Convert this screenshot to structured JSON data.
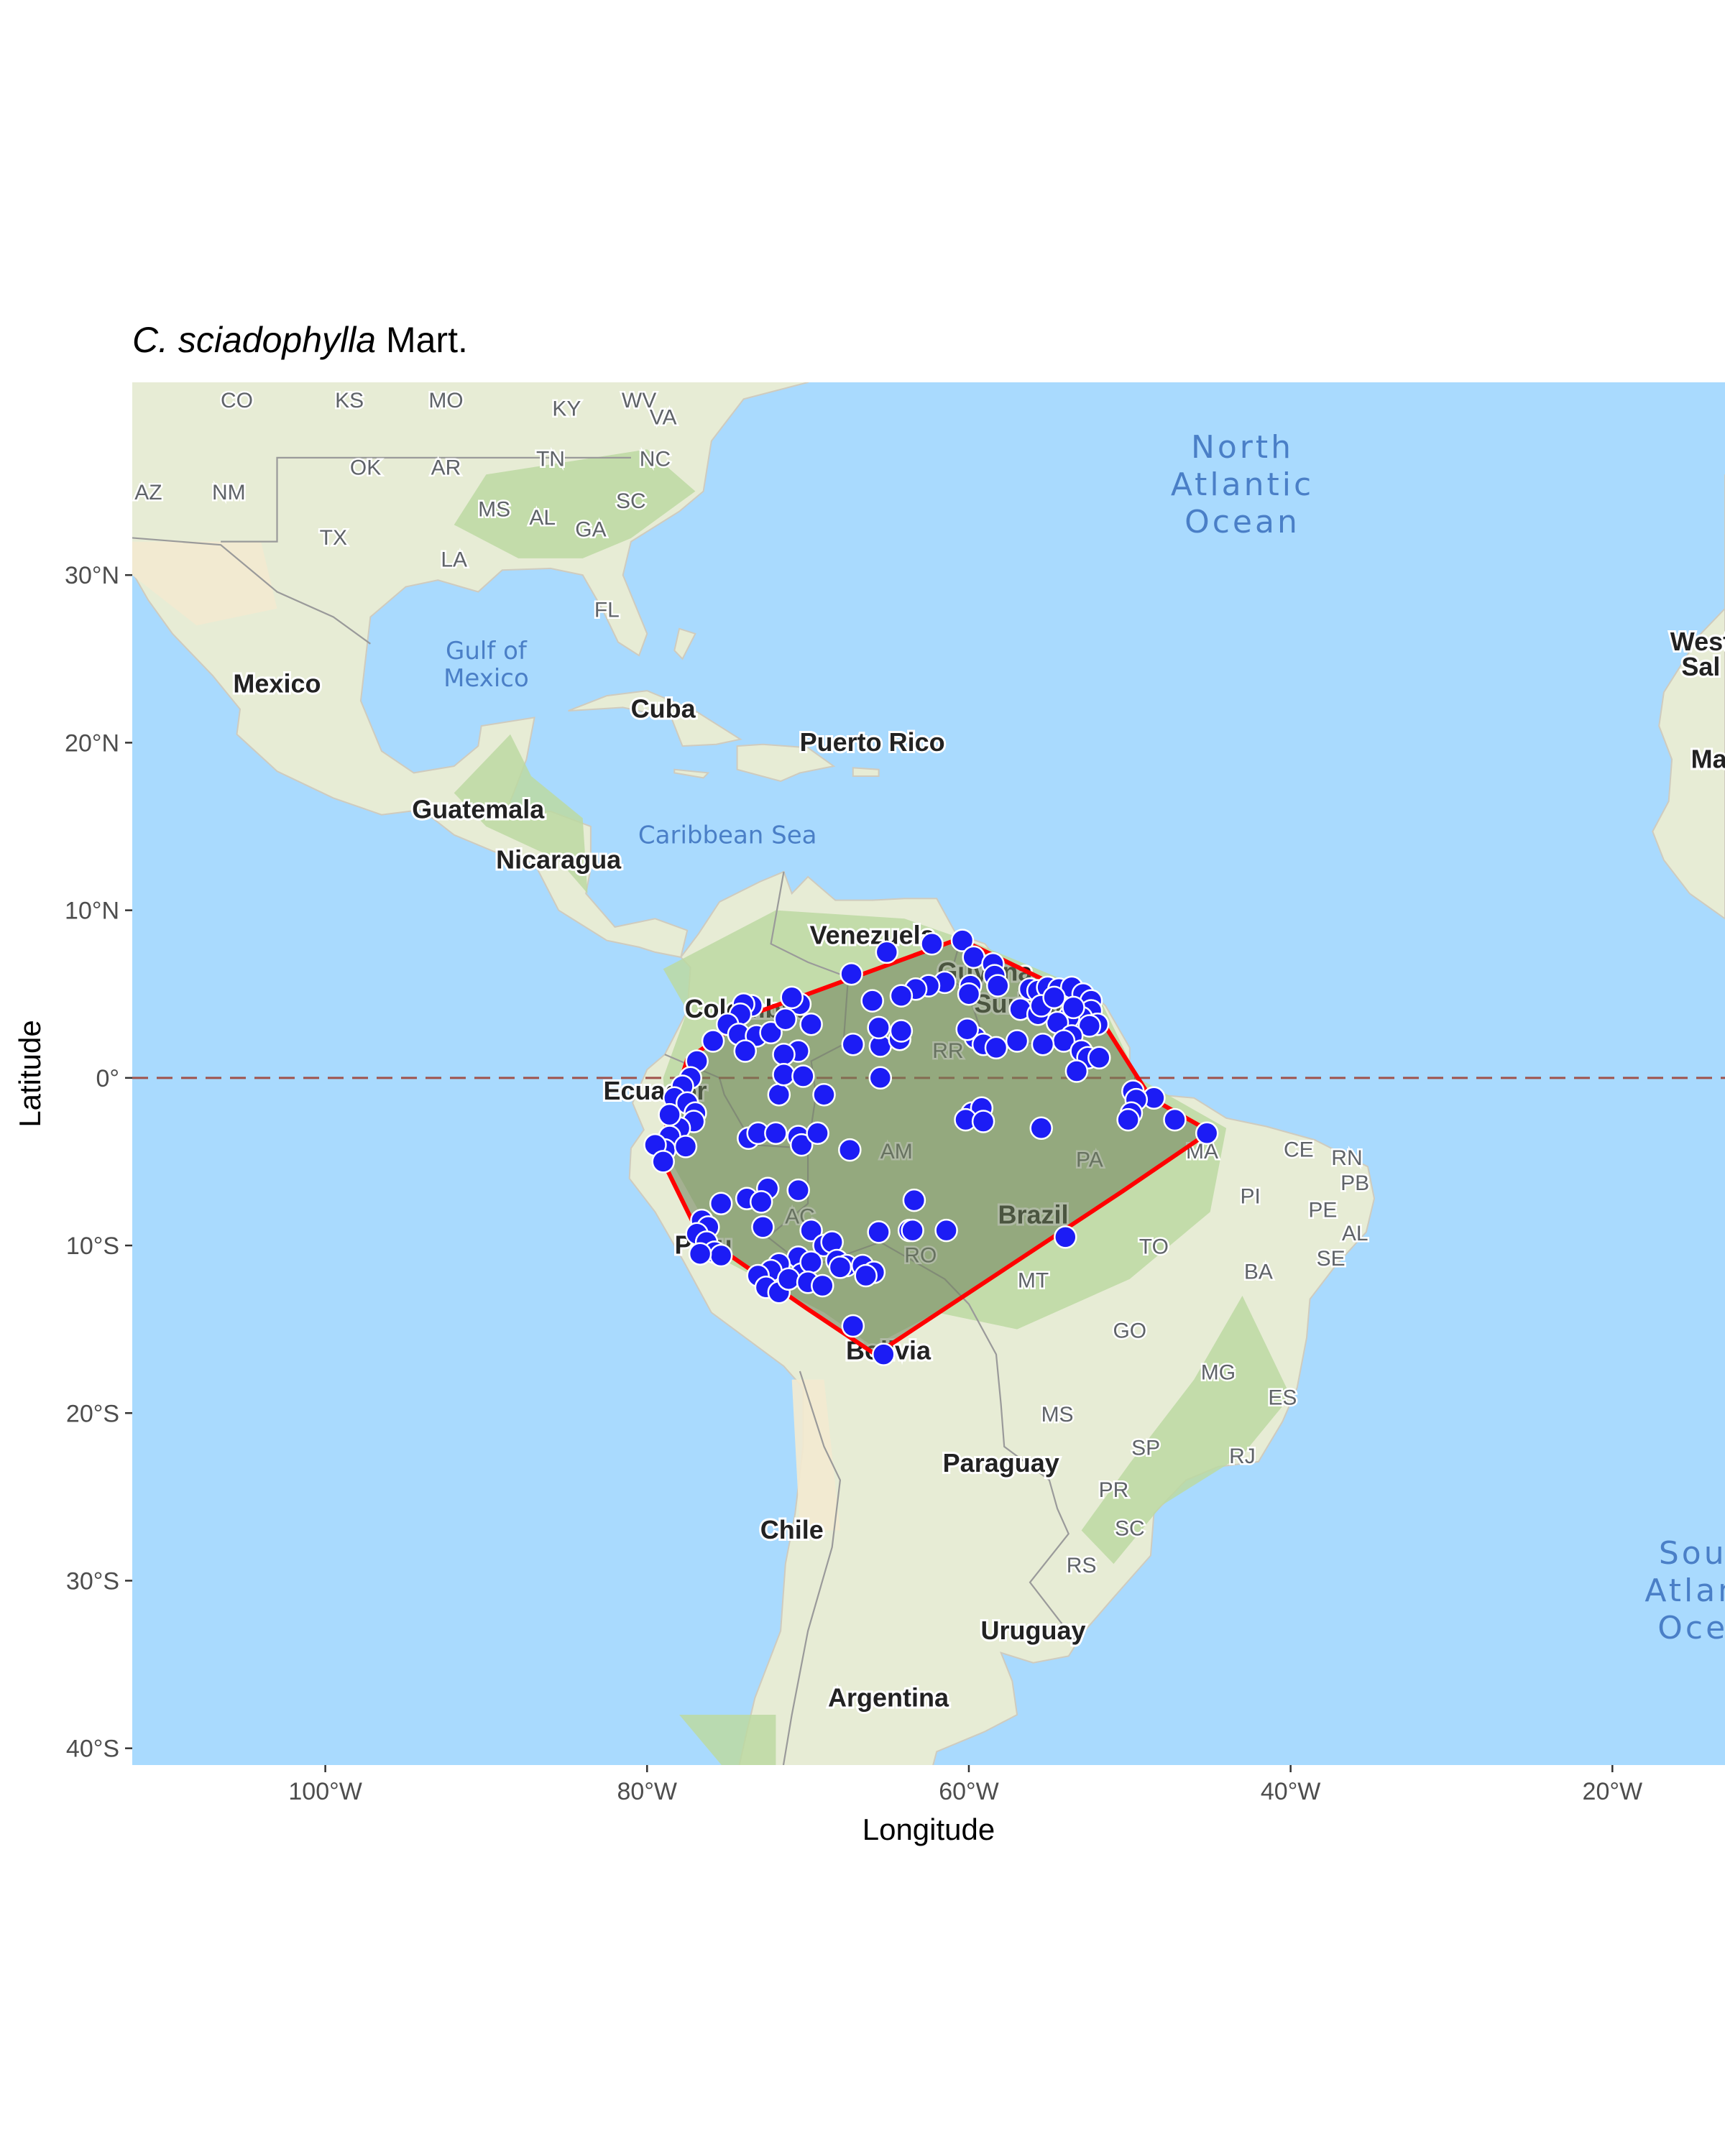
{
  "title": {
    "species": "C. sciadophylla",
    "author": "Mart."
  },
  "axes": {
    "xlabel": "Longitude",
    "ylabel": "Latitude",
    "xlim": [
      -112,
      -13
    ],
    "ylim": [
      -41,
      41.5
    ],
    "x_ticks": [
      {
        "value": -100,
        "label": "100°W"
      },
      {
        "value": -80,
        "label": "80°W"
      },
      {
        "value": -60,
        "label": "60°W"
      },
      {
        "value": -40,
        "label": "40°W"
      },
      {
        "value": -20,
        "label": "20°W"
      }
    ],
    "y_ticks": [
      {
        "value": 30,
        "label": "30°N"
      },
      {
        "value": 20,
        "label": "20°N"
      },
      {
        "value": 10,
        "label": "10°N"
      },
      {
        "value": 0,
        "label": "0°"
      },
      {
        "value": -10,
        "label": "10°S"
      },
      {
        "value": -20,
        "label": "20°S"
      },
      {
        "value": -30,
        "label": "30°S"
      },
      {
        "value": -40,
        "label": "40°S"
      }
    ]
  },
  "map_labels": {
    "oceans": [
      {
        "lines": [
          "North",
          "Atlantic",
          "Ocean"
        ],
        "lon": -43,
        "lat": 37
      },
      {
        "lines": [
          "Sou",
          "Atlan",
          "Oce"
        ],
        "lon": -15,
        "lat": -29
      }
    ],
    "seas": [
      {
        "lines": [
          "Gulf of",
          "Mexico"
        ],
        "lon": -90,
        "lat": 25
      },
      {
        "lines": [
          "Caribbean Sea"
        ],
        "lon": -75,
        "lat": 14
      }
    ],
    "countries": [
      {
        "text": "Mexico",
        "lon": -103,
        "lat": 23
      },
      {
        "text": "Cuba",
        "lon": -79,
        "lat": 21.5
      },
      {
        "text": "Puerto Rico",
        "lon": -66,
        "lat": 19.5
      },
      {
        "text": "Guatemala",
        "lon": -90.5,
        "lat": 15.5
      },
      {
        "text": "Nicaragua",
        "lon": -85.5,
        "lat": 12.5
      },
      {
        "text": "Venezuela",
        "lon": -66,
        "lat": 8
      },
      {
        "text": "Guyana",
        "lon": -59,
        "lat": 5.8
      },
      {
        "text": "Suriname",
        "lon": -56,
        "lat": 3.9
      },
      {
        "text": "Colombia",
        "lon": -74,
        "lat": 3.6
      },
      {
        "text": "Ecuador",
        "lon": -79.5,
        "lat": -1.3
      },
      {
        "text": "Brazil",
        "lon": -56,
        "lat": -8.7
      },
      {
        "text": "Peru",
        "lon": -76.5,
        "lat": -10.5
      },
      {
        "text": "Bolivia",
        "lon": -65,
        "lat": -16.8
      },
      {
        "text": "Paraguay",
        "lon": -58,
        "lat": -23.5
      },
      {
        "text": "Chile",
        "lon": -71,
        "lat": -27.5
      },
      {
        "text": "Uruguay",
        "lon": -56,
        "lat": -33.5
      },
      {
        "text": "Argentina",
        "lon": -65,
        "lat": -37.5
      },
      {
        "text": "West",
        "lon": -14.5,
        "lat": 25.5
      },
      {
        "text": "Sal",
        "lon": -14.5,
        "lat": 24
      },
      {
        "text": "Ma",
        "lon": -14,
        "lat": 18.5
      }
    ],
    "states": [
      {
        "text": "CO",
        "lon": -105.5,
        "lat": 40
      },
      {
        "text": "KS",
        "lon": -98.5,
        "lat": 40
      },
      {
        "text": "MO",
        "lon": -92.5,
        "lat": 40
      },
      {
        "text": "WV",
        "lon": -80.5,
        "lat": 40
      },
      {
        "text": "KY",
        "lon": -85,
        "lat": 39.5
      },
      {
        "text": "VA",
        "lon": -79,
        "lat": 39
      },
      {
        "text": "OK",
        "lon": -97.5,
        "lat": 36
      },
      {
        "text": "AR",
        "lon": -92.5,
        "lat": 36
      },
      {
        "text": "TN",
        "lon": -86,
        "lat": 36.5
      },
      {
        "text": "NC",
        "lon": -79.5,
        "lat": 36.5
      },
      {
        "text": "AZ",
        "lon": -111,
        "lat": 34.5
      },
      {
        "text": "NM",
        "lon": -106,
        "lat": 34.5
      },
      {
        "text": "MS",
        "lon": -89.5,
        "lat": 33.5
      },
      {
        "text": "AL",
        "lon": -86.5,
        "lat": 33
      },
      {
        "text": "SC",
        "lon": -81,
        "lat": 34
      },
      {
        "text": "GA",
        "lon": -83.5,
        "lat": 32.3
      },
      {
        "text": "TX",
        "lon": -99.5,
        "lat": 31.8
      },
      {
        "text": "LA",
        "lon": -92,
        "lat": 30.5
      },
      {
        "text": "FL",
        "lon": -82.5,
        "lat": 27.5
      },
      {
        "text": "RR",
        "lon": -61.3,
        "lat": 1.2
      },
      {
        "text": "AM",
        "lon": -64.5,
        "lat": -4.8
      },
      {
        "text": "PA",
        "lon": -52.5,
        "lat": -5.3
      },
      {
        "text": "AC",
        "lon": -70.5,
        "lat": -8.7
      },
      {
        "text": "RO",
        "lon": -63,
        "lat": -11
      },
      {
        "text": "MA",
        "lon": -45.5,
        "lat": -4.8
      },
      {
        "text": "CE",
        "lon": -39.5,
        "lat": -4.7
      },
      {
        "text": "RN",
        "lon": -36.5,
        "lat": -5.2
      },
      {
        "text": "PB",
        "lon": -36,
        "lat": -6.7
      },
      {
        "text": "PI",
        "lon": -42.5,
        "lat": -7.5
      },
      {
        "text": "PE",
        "lon": -38,
        "lat": -8.3
      },
      {
        "text": "AL",
        "lon": -36,
        "lat": -9.7
      },
      {
        "text": "SE",
        "lon": -37.5,
        "lat": -11.2
      },
      {
        "text": "TO",
        "lon": -48.5,
        "lat": -10.5
      },
      {
        "text": "BA",
        "lon": -42,
        "lat": -12
      },
      {
        "text": "MT",
        "lon": -56,
        "lat": -12.5
      },
      {
        "text": "GO",
        "lon": -50,
        "lat": -15.5
      },
      {
        "text": "MG",
        "lon": -44.5,
        "lat": -18
      },
      {
        "text": "ES",
        "lon": -40.5,
        "lat": -19.5
      },
      {
        "text": "MS",
        "lon": -54.5,
        "lat": -20.5
      },
      {
        "text": "SP",
        "lon": -49,
        "lat": -22.5
      },
      {
        "text": "RJ",
        "lon": -43,
        "lat": -23
      },
      {
        "text": "PR",
        "lon": -51,
        "lat": -25
      },
      {
        "text": "SC",
        "lon": -50,
        "lat": -27.3
      },
      {
        "text": "RS",
        "lon": -53,
        "lat": -29.5
      }
    ]
  },
  "colors": {
    "ocean": "#a9dafe",
    "land": "#e7ecd5",
    "forest": "#bcd9a2",
    "hull_fill": "#6e7f5a",
    "hull_stroke": "#ff0000",
    "point_fill": "#1c1cf5",
    "point_stroke": "#ffffff",
    "equator_line": "#a0524b"
  },
  "chart_data": {
    "type": "scatter",
    "equator_line_lat": 0,
    "hull": [
      [
        -60.6,
        8.3
      ],
      [
        -55,
        5.7
      ],
      [
        -51.8,
        3.5
      ],
      [
        -48.7,
        -1.2
      ],
      [
        -45,
        -3.2
      ],
      [
        -50.5,
        -6.8
      ],
      [
        -65.8,
        -16.5
      ],
      [
        -70,
        -13.8
      ],
      [
        -76.8,
        -9.3
      ],
      [
        -79,
        -5
      ],
      [
        -79,
        -3.5
      ],
      [
        -77.5,
        1.1
      ],
      [
        -73.5,
        3.8
      ],
      [
        -70,
        5
      ]
    ],
    "points": [
      [
        -60.4,
        8.2
      ],
      [
        -62.3,
        8.0
      ],
      [
        -65.1,
        7.5
      ],
      [
        -59.7,
        7.2
      ],
      [
        -58.5,
        6.8
      ],
      [
        -58.4,
        6.1
      ],
      [
        -58.2,
        5.5
      ],
      [
        -59.9,
        5.5
      ],
      [
        -61.5,
        5.7
      ],
      [
        -62.5,
        5.5
      ],
      [
        -63.3,
        5.3
      ],
      [
        -64.2,
        4.9
      ],
      [
        -66.0,
        4.6
      ],
      [
        -67.3,
        6.2
      ],
      [
        -70.5,
        4.4
      ],
      [
        -71.0,
        4.8
      ],
      [
        -73.5,
        4.3
      ],
      [
        -74.0,
        4.4
      ],
      [
        -74.2,
        3.8
      ],
      [
        -75.0,
        3.2
      ],
      [
        -74.3,
        2.6
      ],
      [
        -73.2,
        2.5
      ],
      [
        -72.3,
        2.7
      ],
      [
        -71.4,
        3.5
      ],
      [
        -69.8,
        3.2
      ],
      [
        -70.6,
        1.6
      ],
      [
        -71.5,
        1.4
      ],
      [
        -73.9,
        1.6
      ],
      [
        -75.9,
        2.2
      ],
      [
        -76.9,
        1.0
      ],
      [
        -77.3,
        0.0
      ],
      [
        -77.8,
        -0.5
      ],
      [
        -78.3,
        -1.2
      ],
      [
        -77.5,
        -1.5
      ],
      [
        -77.0,
        -2.1
      ],
      [
        -77.1,
        -2.6
      ],
      [
        -78.0,
        -3.0
      ],
      [
        -78.6,
        -2.2
      ],
      [
        -78.6,
        -3.5
      ],
      [
        -78.9,
        -4.3
      ],
      [
        -77.6,
        -4.1
      ],
      [
        -79.5,
        -4.0
      ],
      [
        -79.0,
        -5.0
      ],
      [
        -73.7,
        -3.6
      ],
      [
        -73.1,
        -3.3
      ],
      [
        -72.0,
        -3.3
      ],
      [
        -70.6,
        -3.5
      ],
      [
        -70.4,
        -4.0
      ],
      [
        -69.4,
        -3.3
      ],
      [
        -67.4,
        -4.3
      ],
      [
        -71.8,
        -1.0
      ],
      [
        -71.5,
        0.2
      ],
      [
        -70.3,
        0.1
      ],
      [
        -69.0,
        -1.0
      ],
      [
        -67.2,
        2.0
      ],
      [
        -65.5,
        1.9
      ],
      [
        -65.5,
        0.0
      ],
      [
        -64.3,
        2.3
      ],
      [
        -64.2,
        2.8
      ],
      [
        -65.6,
        3.0
      ],
      [
        -59.6,
        2.4
      ],
      [
        -59.1,
        2.0
      ],
      [
        -60.1,
        2.9
      ],
      [
        -60.0,
        5.0
      ],
      [
        -56.8,
        4.1
      ],
      [
        -56.2,
        5.3
      ],
      [
        -55.7,
        5.2
      ],
      [
        -55.1,
        5.4
      ],
      [
        -54.4,
        5.3
      ],
      [
        -53.6,
        5.4
      ],
      [
        -52.9,
        5.0
      ],
      [
        -52.4,
        4.6
      ],
      [
        -52.4,
        4.0
      ],
      [
        -53.0,
        3.6
      ],
      [
        -53.8,
        3.6
      ],
      [
        -54.5,
        3.3
      ],
      [
        -55.7,
        3.8
      ],
      [
        -55.5,
        4.3
      ],
      [
        -54.7,
        4.8
      ],
      [
        -53.5,
        4.2
      ],
      [
        -52.0,
        3.2
      ],
      [
        -52.5,
        3.1
      ],
      [
        -53.6,
        2.5
      ],
      [
        -54.1,
        2.2
      ],
      [
        -55.4,
        2.0
      ],
      [
        -57.0,
        2.2
      ],
      [
        -58.3,
        1.8
      ],
      [
        -53.0,
        1.6
      ],
      [
        -52.6,
        1.2
      ],
      [
        -51.9,
        1.2
      ],
      [
        -53.3,
        0.4
      ],
      [
        -49.8,
        -0.8
      ],
      [
        -48.5,
        -1.2
      ],
      [
        -49.6,
        -1.3
      ],
      [
        -49.9,
        -2.1
      ],
      [
        -50.1,
        -2.5
      ],
      [
        -47.2,
        -2.5
      ],
      [
        -45.2,
        -3.3
      ],
      [
        -55.5,
        -3.0
      ],
      [
        -59.8,
        -2.1
      ],
      [
        -59.2,
        -1.8
      ],
      [
        -60.2,
        -2.5
      ],
      [
        -59.1,
        -2.6
      ],
      [
        -54.0,
        -9.5
      ],
      [
        -70.6,
        -6.7
      ],
      [
        -72.5,
        -6.6
      ],
      [
        -73.8,
        -7.2
      ],
      [
        -72.9,
        -7.4
      ],
      [
        -75.4,
        -7.5
      ],
      [
        -76.6,
        -8.5
      ],
      [
        -76.2,
        -8.9
      ],
      [
        -76.9,
        -9.3
      ],
      [
        -76.3,
        -9.8
      ],
      [
        -75.8,
        -10.4
      ],
      [
        -75.4,
        -10.6
      ],
      [
        -76.7,
        -10.5
      ],
      [
        -72.8,
        -8.9
      ],
      [
        -69.8,
        -9.1
      ],
      [
        -69.0,
        -10.0
      ],
      [
        -68.5,
        -9.8
      ],
      [
        -70.6,
        -10.7
      ],
      [
        -71.8,
        -11.1
      ],
      [
        -72.3,
        -11.5
      ],
      [
        -70.4,
        -11.7
      ],
      [
        -69.8,
        -11.0
      ],
      [
        -68.2,
        -10.9
      ],
      [
        -67.6,
        -11.2
      ],
      [
        -66.6,
        -11.2
      ],
      [
        -65.9,
        -11.6
      ],
      [
        -65.6,
        -9.2
      ],
      [
        -63.7,
        -9.1
      ],
      [
        -63.4,
        -7.3
      ],
      [
        -63.5,
        -9.1
      ],
      [
        -61.4,
        -9.1
      ],
      [
        -73.1,
        -11.8
      ],
      [
        -72.6,
        -12.5
      ],
      [
        -71.8,
        -12.8
      ],
      [
        -71.2,
        -12.0
      ],
      [
        -70.0,
        -12.2
      ],
      [
        -69.1,
        -12.4
      ],
      [
        -68.0,
        -11.3
      ],
      [
        -67.2,
        -14.8
      ],
      [
        -65.3,
        -16.5
      ],
      [
        -66.4,
        -11.8
      ]
    ]
  }
}
